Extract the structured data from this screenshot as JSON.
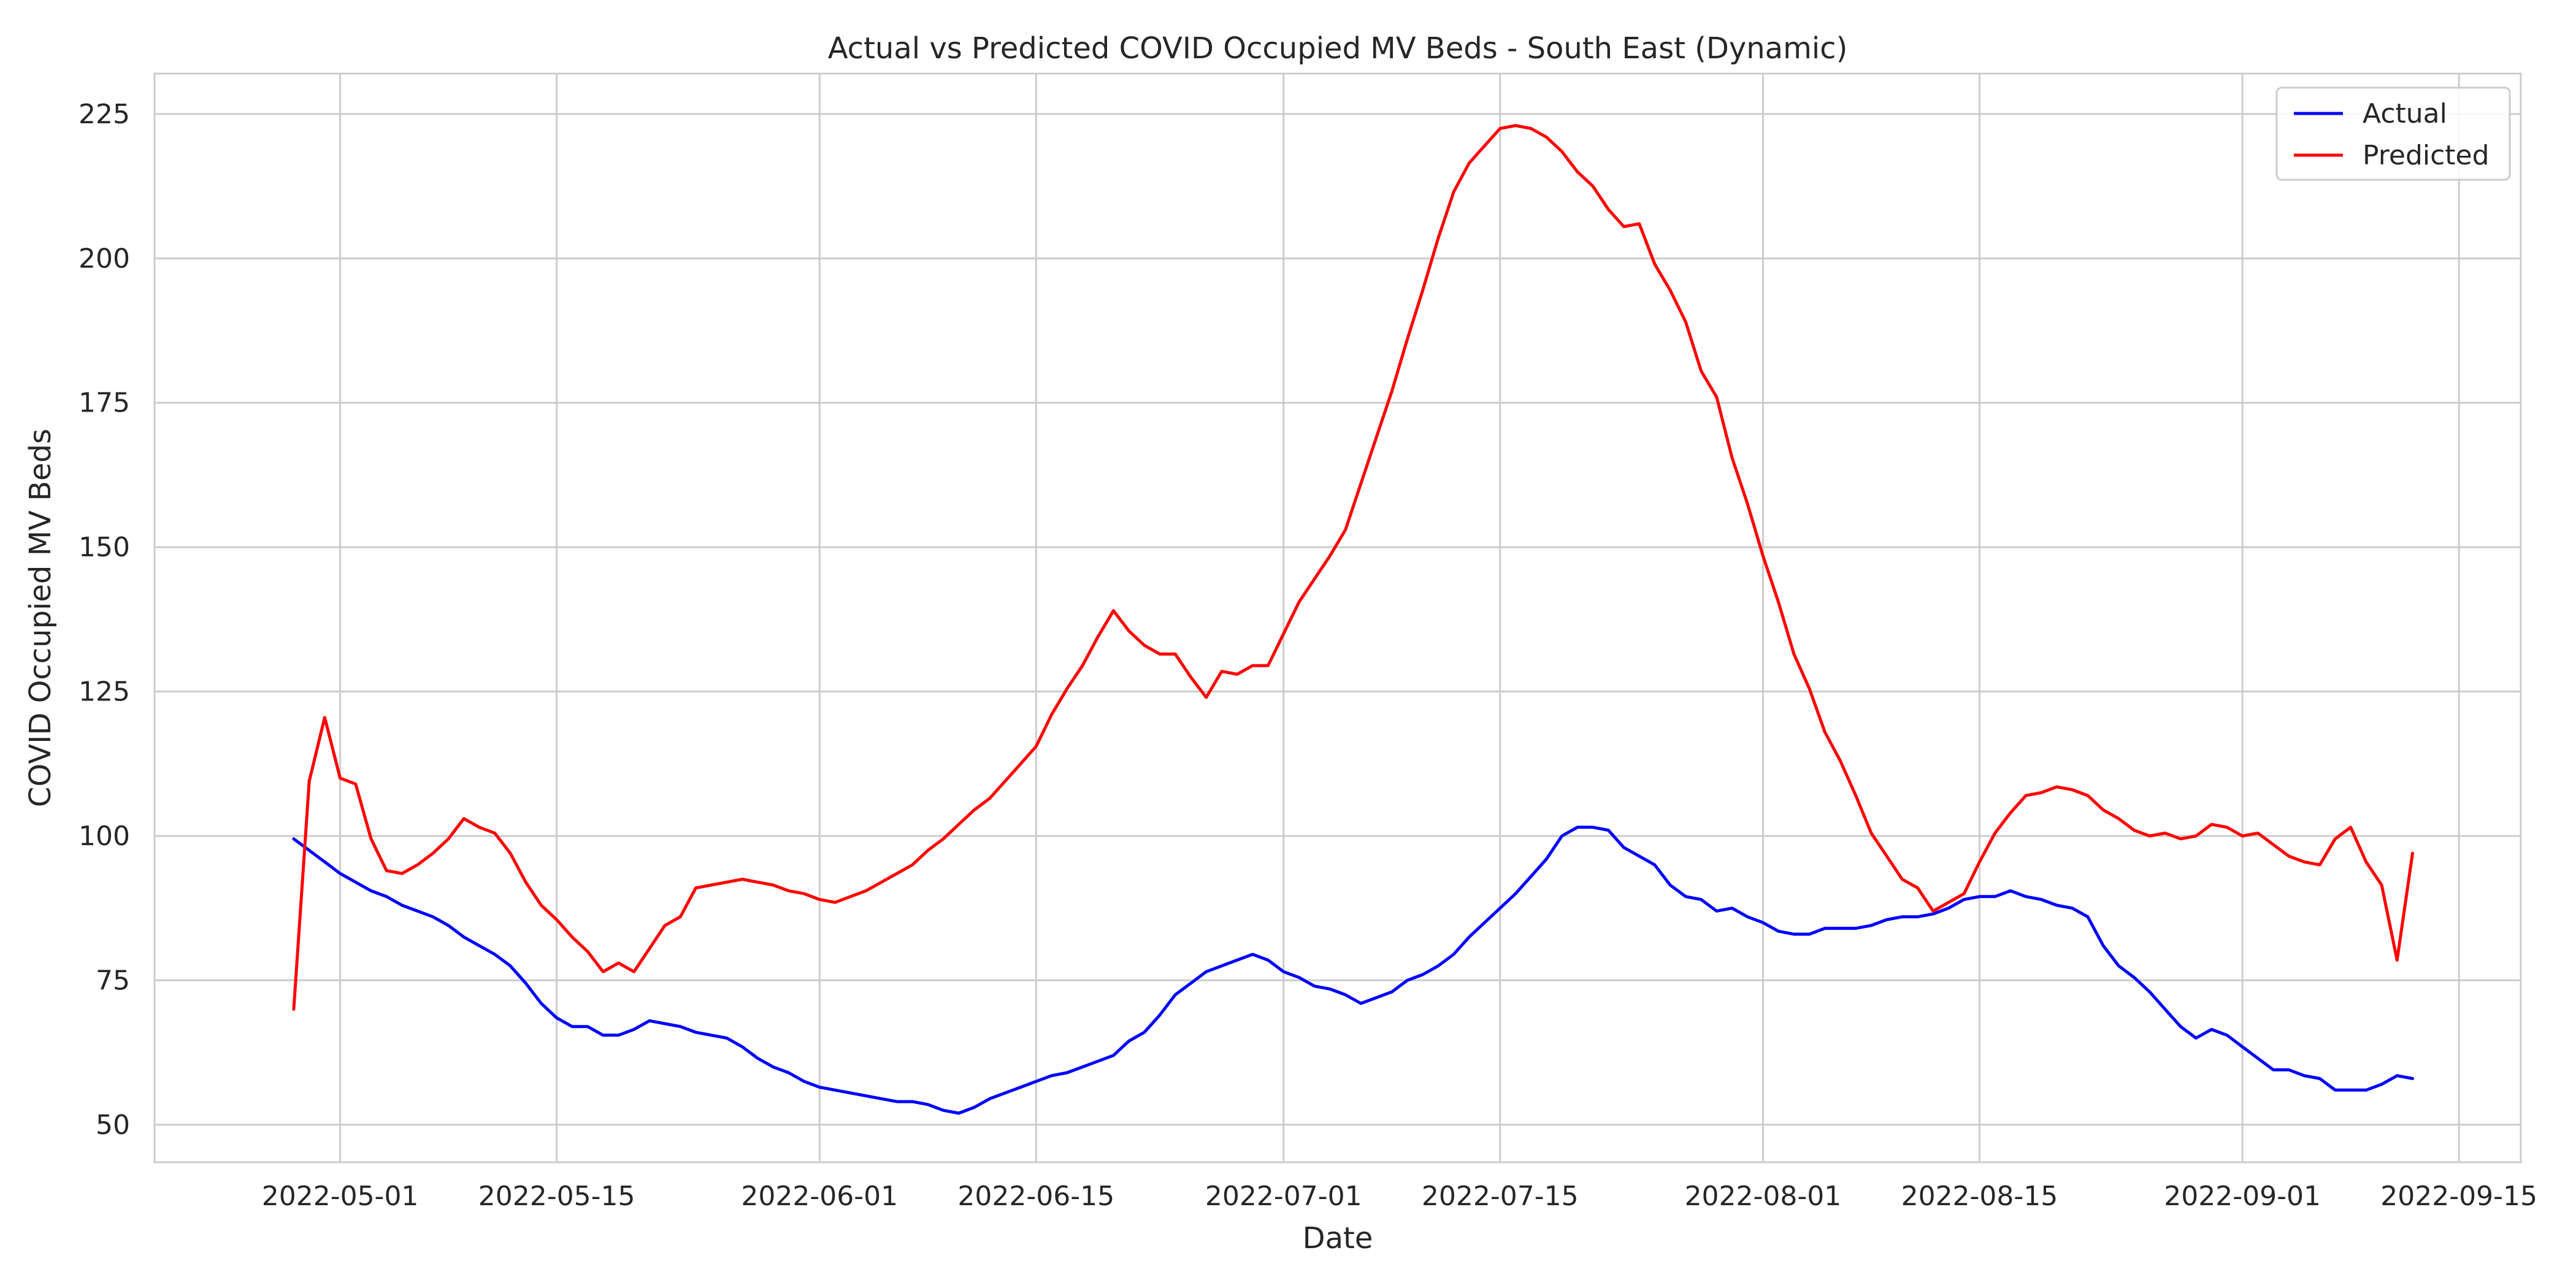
{
  "chart_data": {
    "type": "line",
    "title": "Actual vs Predicted COVID Occupied MV Beds - South East (Dynamic)",
    "xlabel": "Date",
    "ylabel": "COVID Occupied MV Beds",
    "x_range": [
      "2022-04-19",
      "2022-09-19"
    ],
    "ylim": [
      43.5,
      232
    ],
    "x_ticks": [
      "2022-05-01",
      "2022-05-15",
      "2022-06-01",
      "2022-06-15",
      "2022-07-01",
      "2022-07-15",
      "2022-08-01",
      "2022-08-15",
      "2022-09-01",
      "2022-09-15"
    ],
    "y_ticks": [
      50,
      75,
      100,
      125,
      150,
      175,
      200,
      225
    ],
    "grid": true,
    "legend_position": "top-right",
    "series": [
      {
        "name": "Actual",
        "color": "#0000ff",
        "points": [
          [
            "2022-04-28",
            99.5
          ],
          [
            "2022-04-29",
            97.5
          ],
          [
            "2022-04-30",
            95.5
          ],
          [
            "2022-05-01",
            93.5
          ],
          [
            "2022-05-02",
            92.0
          ],
          [
            "2022-05-03",
            90.5
          ],
          [
            "2022-05-04",
            89.5
          ],
          [
            "2022-05-05",
            88.0
          ],
          [
            "2022-05-06",
            87.0
          ],
          [
            "2022-05-07",
            86.0
          ],
          [
            "2022-05-08",
            84.5
          ],
          [
            "2022-05-09",
            82.5
          ],
          [
            "2022-05-10",
            81.0
          ],
          [
            "2022-05-11",
            79.5
          ],
          [
            "2022-05-12",
            77.5
          ],
          [
            "2022-05-13",
            74.5
          ],
          [
            "2022-05-14",
            71.0
          ],
          [
            "2022-05-15",
            68.5
          ],
          [
            "2022-05-16",
            67.0
          ],
          [
            "2022-05-17",
            67.0
          ],
          [
            "2022-05-18",
            65.5
          ],
          [
            "2022-05-19",
            65.5
          ],
          [
            "2022-05-20",
            66.5
          ],
          [
            "2022-05-21",
            68.0
          ],
          [
            "2022-05-22",
            67.5
          ],
          [
            "2022-05-23",
            67.0
          ],
          [
            "2022-05-24",
            66.0
          ],
          [
            "2022-05-25",
            65.5
          ],
          [
            "2022-05-26",
            65.0
          ],
          [
            "2022-05-27",
            63.5
          ],
          [
            "2022-05-28",
            61.5
          ],
          [
            "2022-05-29",
            60.0
          ],
          [
            "2022-05-30",
            59.0
          ],
          [
            "2022-05-31",
            57.5
          ],
          [
            "2022-06-01",
            56.5
          ],
          [
            "2022-06-02",
            56.0
          ],
          [
            "2022-06-03",
            55.5
          ],
          [
            "2022-06-04",
            55.0
          ],
          [
            "2022-06-05",
            54.5
          ],
          [
            "2022-06-06",
            54.0
          ],
          [
            "2022-06-07",
            54.0
          ],
          [
            "2022-06-08",
            53.5
          ],
          [
            "2022-06-09",
            52.5
          ],
          [
            "2022-06-10",
            52.0
          ],
          [
            "2022-06-11",
            53.0
          ],
          [
            "2022-06-12",
            54.5
          ],
          [
            "2022-06-13",
            55.5
          ],
          [
            "2022-06-14",
            56.5
          ],
          [
            "2022-06-15",
            57.5
          ],
          [
            "2022-06-16",
            58.5
          ],
          [
            "2022-06-17",
            59.0
          ],
          [
            "2022-06-18",
            60.0
          ],
          [
            "2022-06-19",
            61.0
          ],
          [
            "2022-06-20",
            62.0
          ],
          [
            "2022-06-21",
            64.5
          ],
          [
            "2022-06-22",
            66.0
          ],
          [
            "2022-06-23",
            69.0
          ],
          [
            "2022-06-24",
            72.5
          ],
          [
            "2022-06-25",
            74.5
          ],
          [
            "2022-06-26",
            76.5
          ],
          [
            "2022-06-27",
            77.5
          ],
          [
            "2022-06-28",
            78.5
          ],
          [
            "2022-06-29",
            79.5
          ],
          [
            "2022-06-30",
            78.5
          ],
          [
            "2022-07-01",
            76.5
          ],
          [
            "2022-07-02",
            75.5
          ],
          [
            "2022-07-03",
            74.0
          ],
          [
            "2022-07-04",
            73.5
          ],
          [
            "2022-07-05",
            72.5
          ],
          [
            "2022-07-06",
            71.0
          ],
          [
            "2022-07-07",
            72.0
          ],
          [
            "2022-07-08",
            73.0
          ],
          [
            "2022-07-09",
            75.0
          ],
          [
            "2022-07-10",
            76.0
          ],
          [
            "2022-07-11",
            77.5
          ],
          [
            "2022-07-12",
            79.5
          ],
          [
            "2022-07-13",
            82.5
          ],
          [
            "2022-07-14",
            85.0
          ],
          [
            "2022-07-15",
            87.5
          ],
          [
            "2022-07-16",
            90.0
          ],
          [
            "2022-07-17",
            93.0
          ],
          [
            "2022-07-18",
            96.0
          ],
          [
            "2022-07-19",
            100.0
          ],
          [
            "2022-07-20",
            101.5
          ],
          [
            "2022-07-21",
            101.5
          ],
          [
            "2022-07-22",
            101.0
          ],
          [
            "2022-07-23",
            98.0
          ],
          [
            "2022-07-24",
            96.5
          ],
          [
            "2022-07-25",
            95.0
          ],
          [
            "2022-07-26",
            91.5
          ],
          [
            "2022-07-27",
            89.5
          ],
          [
            "2022-07-28",
            89.0
          ],
          [
            "2022-07-29",
            87.0
          ],
          [
            "2022-07-30",
            87.5
          ],
          [
            "2022-07-31",
            86.0
          ],
          [
            "2022-08-01",
            85.0
          ],
          [
            "2022-08-02",
            83.5
          ],
          [
            "2022-08-03",
            83.0
          ],
          [
            "2022-08-04",
            83.0
          ],
          [
            "2022-08-05",
            84.0
          ],
          [
            "2022-08-06",
            84.0
          ],
          [
            "2022-08-07",
            84.0
          ],
          [
            "2022-08-08",
            84.5
          ],
          [
            "2022-08-09",
            85.5
          ],
          [
            "2022-08-10",
            86.0
          ],
          [
            "2022-08-11",
            86.0
          ],
          [
            "2022-08-12",
            86.5
          ],
          [
            "2022-08-13",
            87.5
          ],
          [
            "2022-08-14",
            89.0
          ],
          [
            "2022-08-15",
            89.5
          ],
          [
            "2022-08-16",
            89.5
          ],
          [
            "2022-08-17",
            90.5
          ],
          [
            "2022-08-18",
            89.5
          ],
          [
            "2022-08-19",
            89.0
          ],
          [
            "2022-08-20",
            88.0
          ],
          [
            "2022-08-21",
            87.5
          ],
          [
            "2022-08-22",
            86.0
          ],
          [
            "2022-08-23",
            81.0
          ],
          [
            "2022-08-24",
            77.5
          ],
          [
            "2022-08-25",
            75.5
          ],
          [
            "2022-08-26",
            73.0
          ],
          [
            "2022-08-27",
            70.0
          ],
          [
            "2022-08-28",
            67.0
          ],
          [
            "2022-08-29",
            65.0
          ],
          [
            "2022-08-30",
            66.5
          ],
          [
            "2022-08-31",
            65.5
          ],
          [
            "2022-09-01",
            63.5
          ],
          [
            "2022-09-02",
            61.5
          ],
          [
            "2022-09-03",
            59.5
          ],
          [
            "2022-09-04",
            59.5
          ],
          [
            "2022-09-05",
            58.5
          ],
          [
            "2022-09-06",
            58.0
          ],
          [
            "2022-09-07",
            56.0
          ],
          [
            "2022-09-08",
            56.0
          ],
          [
            "2022-09-09",
            56.0
          ],
          [
            "2022-09-10",
            57.0
          ],
          [
            "2022-09-11",
            58.5
          ],
          [
            "2022-09-12",
            58.0
          ]
        ]
      },
      {
        "name": "Predicted",
        "color": "#ff0000",
        "points": [
          [
            "2022-04-28",
            70.0
          ],
          [
            "2022-04-29",
            109.5
          ],
          [
            "2022-04-30",
            120.5
          ],
          [
            "2022-05-01",
            110.0
          ],
          [
            "2022-05-02",
            109.0
          ],
          [
            "2022-05-03",
            99.5
          ],
          [
            "2022-05-04",
            94.0
          ],
          [
            "2022-05-05",
            93.5
          ],
          [
            "2022-05-06",
            95.0
          ],
          [
            "2022-05-07",
            97.0
          ],
          [
            "2022-05-08",
            99.5
          ],
          [
            "2022-05-09",
            103.0
          ],
          [
            "2022-05-10",
            101.5
          ],
          [
            "2022-05-11",
            100.5
          ],
          [
            "2022-05-12",
            97.0
          ],
          [
            "2022-05-13",
            92.0
          ],
          [
            "2022-05-14",
            88.0
          ],
          [
            "2022-05-15",
            85.5
          ],
          [
            "2022-05-16",
            82.5
          ],
          [
            "2022-05-17",
            80.0
          ],
          [
            "2022-05-18",
            76.5
          ],
          [
            "2022-05-19",
            78.0
          ],
          [
            "2022-05-20",
            76.5
          ],
          [
            "2022-05-21",
            80.5
          ],
          [
            "2022-05-22",
            84.5
          ],
          [
            "2022-05-23",
            86.0
          ],
          [
            "2022-05-24",
            91.0
          ],
          [
            "2022-05-25",
            91.5
          ],
          [
            "2022-05-26",
            92.0
          ],
          [
            "2022-05-27",
            92.5
          ],
          [
            "2022-05-28",
            92.0
          ],
          [
            "2022-05-29",
            91.5
          ],
          [
            "2022-05-30",
            90.5
          ],
          [
            "2022-05-31",
            90.0
          ],
          [
            "2022-06-01",
            89.0
          ],
          [
            "2022-06-02",
            88.5
          ],
          [
            "2022-06-03",
            89.5
          ],
          [
            "2022-06-04",
            90.5
          ],
          [
            "2022-06-05",
            92.0
          ],
          [
            "2022-06-06",
            93.5
          ],
          [
            "2022-06-07",
            95.0
          ],
          [
            "2022-06-08",
            97.5
          ],
          [
            "2022-06-09",
            99.5
          ],
          [
            "2022-06-10",
            102.0
          ],
          [
            "2022-06-11",
            104.5
          ],
          [
            "2022-06-12",
            106.5
          ],
          [
            "2022-06-13",
            109.5
          ],
          [
            "2022-06-14",
            112.5
          ],
          [
            "2022-06-15",
            115.5
          ],
          [
            "2022-06-16",
            121.0
          ],
          [
            "2022-06-17",
            125.5
          ],
          [
            "2022-06-18",
            129.5
          ],
          [
            "2022-06-19",
            134.5
          ],
          [
            "2022-06-20",
            139.0
          ],
          [
            "2022-06-21",
            135.5
          ],
          [
            "2022-06-22",
            133.0
          ],
          [
            "2022-06-23",
            131.5
          ],
          [
            "2022-06-24",
            131.5
          ],
          [
            "2022-06-25",
            127.5
          ],
          [
            "2022-06-26",
            124.0
          ],
          [
            "2022-06-27",
            128.5
          ],
          [
            "2022-06-28",
            128.0
          ],
          [
            "2022-06-29",
            129.5
          ],
          [
            "2022-06-30",
            129.5
          ],
          [
            "2022-07-01",
            135.0
          ],
          [
            "2022-07-02",
            140.5
          ],
          [
            "2022-07-03",
            144.5
          ],
          [
            "2022-07-04",
            148.5
          ],
          [
            "2022-07-05",
            153.0
          ],
          [
            "2022-07-06",
            161.0
          ],
          [
            "2022-07-07",
            169.0
          ],
          [
            "2022-07-08",
            177.0
          ],
          [
            "2022-07-09",
            186.0
          ],
          [
            "2022-07-10",
            194.5
          ],
          [
            "2022-07-11",
            203.5
          ],
          [
            "2022-07-12",
            211.5
          ],
          [
            "2022-07-13",
            216.5
          ],
          [
            "2022-07-14",
            219.5
          ],
          [
            "2022-07-15",
            222.5
          ],
          [
            "2022-07-16",
            223.0
          ],
          [
            "2022-07-17",
            222.5
          ],
          [
            "2022-07-18",
            221.0
          ],
          [
            "2022-07-19",
            218.5
          ],
          [
            "2022-07-20",
            215.0
          ],
          [
            "2022-07-21",
            212.5
          ],
          [
            "2022-07-22",
            208.5
          ],
          [
            "2022-07-23",
            205.5
          ],
          [
            "2022-07-24",
            206.0
          ],
          [
            "2022-07-25",
            199.0
          ],
          [
            "2022-07-26",
            194.5
          ],
          [
            "2022-07-27",
            189.0
          ],
          [
            "2022-07-28",
            180.5
          ],
          [
            "2022-07-29",
            176.0
          ],
          [
            "2022-07-30",
            165.5
          ],
          [
            "2022-07-31",
            157.5
          ],
          [
            "2022-08-01",
            148.5
          ],
          [
            "2022-08-02",
            140.5
          ],
          [
            "2022-08-03",
            131.5
          ],
          [
            "2022-08-04",
            125.5
          ],
          [
            "2022-08-05",
            118.0
          ],
          [
            "2022-08-06",
            113.0
          ],
          [
            "2022-08-07",
            107.0
          ],
          [
            "2022-08-08",
            100.5
          ],
          [
            "2022-08-09",
            96.5
          ],
          [
            "2022-08-10",
            92.5
          ],
          [
            "2022-08-11",
            91.0
          ],
          [
            "2022-08-12",
            87.0
          ],
          [
            "2022-08-13",
            88.5
          ],
          [
            "2022-08-14",
            90.0
          ],
          [
            "2022-08-15",
            95.5
          ],
          [
            "2022-08-16",
            100.5
          ],
          [
            "2022-08-17",
            104.0
          ],
          [
            "2022-08-18",
            107.0
          ],
          [
            "2022-08-19",
            107.5
          ],
          [
            "2022-08-20",
            108.5
          ],
          [
            "2022-08-21",
            108.0
          ],
          [
            "2022-08-22",
            107.0
          ],
          [
            "2022-08-23",
            104.5
          ],
          [
            "2022-08-24",
            103.0
          ],
          [
            "2022-08-25",
            101.0
          ],
          [
            "2022-08-26",
            100.0
          ],
          [
            "2022-08-27",
            100.5
          ],
          [
            "2022-08-28",
            99.5
          ],
          [
            "2022-08-29",
            100.0
          ],
          [
            "2022-08-30",
            102.0
          ],
          [
            "2022-08-31",
            101.5
          ],
          [
            "2022-09-01",
            100.0
          ],
          [
            "2022-09-02",
            100.5
          ],
          [
            "2022-09-03",
            98.5
          ],
          [
            "2022-09-04",
            96.5
          ],
          [
            "2022-09-05",
            95.5
          ],
          [
            "2022-09-06",
            95.0
          ],
          [
            "2022-09-07",
            99.5
          ],
          [
            "2022-09-08",
            101.5
          ],
          [
            "2022-09-09",
            95.5
          ],
          [
            "2022-09-10",
            91.5
          ],
          [
            "2022-09-11",
            78.5
          ],
          [
            "2022-09-12",
            97.0
          ]
        ]
      }
    ]
  }
}
